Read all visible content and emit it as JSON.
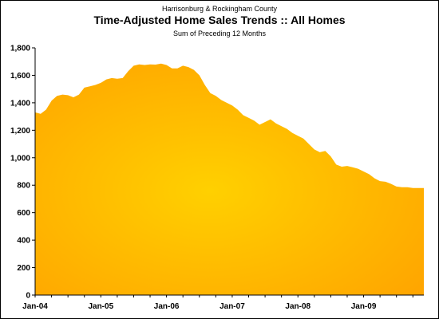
{
  "chart_data": {
    "type": "area",
    "title_top": "Harrisonburg & Rockingham County",
    "title": "Time-Adjusted Home Sales Trends  ::  All Homes",
    "subtitle": "Sum of Preceding 12 Months",
    "xlabel": "",
    "ylabel": "",
    "ylim": [
      0,
      1800
    ],
    "yticks": [
      0,
      200,
      400,
      600,
      800,
      1000,
      1200,
      1400,
      1600,
      1800
    ],
    "ytick_labels": [
      "0",
      "200",
      "400",
      "600",
      "800",
      "1,000",
      "1,200",
      "1,400",
      "1,600",
      "1,800"
    ],
    "xtick_labels": [
      "Jan-04",
      "Jan-05",
      "Jan-06",
      "Jan-07",
      "Jan-08",
      "Jan-09"
    ],
    "grid": false,
    "legend": "none",
    "fill_colors": {
      "center": "#FFD000",
      "edge": "#FFA500"
    },
    "x": [
      "Jan-04",
      "Feb-04",
      "Mar-04",
      "Apr-04",
      "May-04",
      "Jun-04",
      "Jul-04",
      "Aug-04",
      "Sep-04",
      "Oct-04",
      "Nov-04",
      "Dec-04",
      "Jan-05",
      "Feb-05",
      "Mar-05",
      "Apr-05",
      "May-05",
      "Jun-05",
      "Jul-05",
      "Aug-05",
      "Sep-05",
      "Oct-05",
      "Nov-05",
      "Dec-05",
      "Jan-06",
      "Feb-06",
      "Mar-06",
      "Apr-06",
      "May-06",
      "Jun-06",
      "Jul-06",
      "Aug-06",
      "Sep-06",
      "Oct-06",
      "Nov-06",
      "Dec-06",
      "Jan-07",
      "Feb-07",
      "Mar-07",
      "Apr-07",
      "May-07",
      "Jun-07",
      "Jul-07",
      "Aug-07",
      "Sep-07",
      "Oct-07",
      "Nov-07",
      "Dec-07",
      "Jan-08",
      "Feb-08",
      "Mar-08",
      "Apr-08",
      "May-08",
      "Jun-08",
      "Jul-08",
      "Aug-08",
      "Sep-08",
      "Oct-08",
      "Nov-08",
      "Dec-08",
      "Jan-09",
      "Feb-09",
      "Mar-09",
      "Apr-09",
      "May-09",
      "Jun-09",
      "Jul-09",
      "Aug-09",
      "Sep-09",
      "Oct-09",
      "Nov-09",
      "Dec-09"
    ],
    "values": [
      1330,
      1320,
      1350,
      1415,
      1450,
      1460,
      1455,
      1440,
      1460,
      1510,
      1520,
      1530,
      1545,
      1570,
      1580,
      1575,
      1580,
      1630,
      1670,
      1680,
      1675,
      1680,
      1678,
      1685,
      1675,
      1650,
      1650,
      1670,
      1660,
      1640,
      1600,
      1530,
      1470,
      1450,
      1420,
      1400,
      1380,
      1350,
      1310,
      1290,
      1270,
      1240,
      1260,
      1280,
      1250,
      1230,
      1210,
      1180,
      1160,
      1140,
      1100,
      1060,
      1040,
      1050,
      1010,
      950,
      935,
      940,
      930,
      920,
      900,
      880,
      850,
      830,
      825,
      810,
      790,
      785,
      785,
      780,
      780,
      780
    ]
  }
}
